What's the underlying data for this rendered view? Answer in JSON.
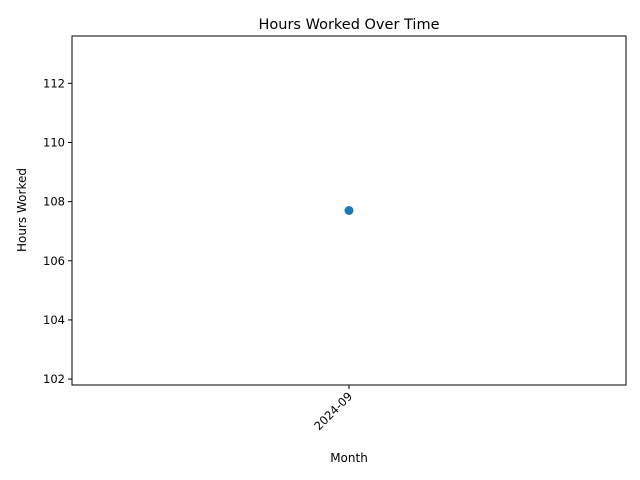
{
  "chart_data": {
    "type": "line",
    "title": "Hours Worked Over Time",
    "xlabel": "Month",
    "ylabel": "Hours Worked",
    "categories": [
      "2024-09"
    ],
    "series": [
      {
        "values": [
          107.7
        ],
        "color": "#1f77b4"
      }
    ],
    "ylim": [
      101.8,
      113.6
    ],
    "yticks": [
      102,
      104,
      106,
      108,
      110,
      112
    ],
    "grid": false,
    "legend": "none"
  }
}
